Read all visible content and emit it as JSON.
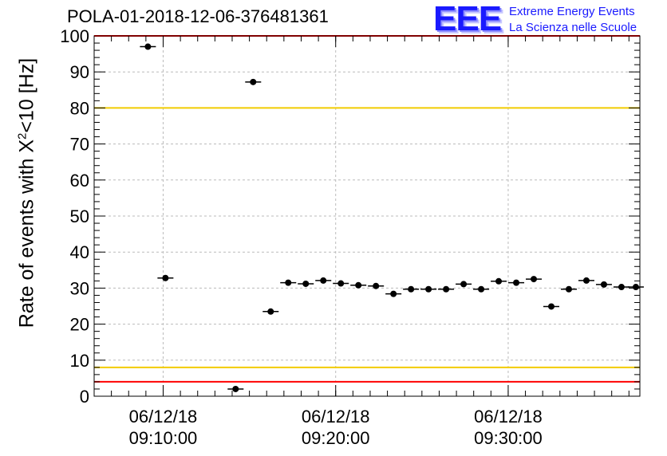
{
  "header": {
    "title": "POLA-01-2018-12-06-376481361",
    "logo_text": "EEE",
    "logo_line1": "Extreme Energy Events",
    "logo_line2": "La Scienza nelle Scuole"
  },
  "colors": {
    "limit_red": "#ff0000",
    "limit_yellow": "#f2cc00",
    "marker": "#000000",
    "grid": "#bbbbbb",
    "logo_blue": "#1a1aff"
  },
  "chart_data": {
    "type": "scatter",
    "title": "POLA-01-2018-12-06-376481361",
    "ylabel_prefix": "Rate of events with X",
    "ylabel_sup": "2",
    "ylabel_suffix": "<10 [Hz]",
    "xlabel": "",
    "ylim": [
      0,
      100
    ],
    "yticks": [
      0,
      10,
      20,
      30,
      40,
      50,
      60,
      70,
      80,
      90,
      100
    ],
    "xlim": [
      "09:06:00",
      "09:37:38"
    ],
    "xticks": [
      {
        "date": "06/12/18",
        "time": "09:10:00"
      },
      {
        "date": "06/12/18",
        "time": "09:20:00"
      },
      {
        "date": "06/12/18",
        "time": "09:30:00"
      }
    ],
    "grid": true,
    "reference_lines": [
      {
        "y": 100,
        "color": "red"
      },
      {
        "y": 80,
        "color": "yellow"
      },
      {
        "y": 8,
        "color": "yellow"
      },
      {
        "y": 4,
        "color": "red"
      }
    ],
    "series": [
      {
        "x": [
          "09:09:07",
          "09:10:08",
          "09:11:09",
          "09:12:10",
          "09:13:11",
          "09:14:12",
          "09:15:13",
          "09:16:14",
          "09:17:15",
          "09:18:16",
          "09:19:17",
          "09:20:18",
          "09:21:19",
          "09:22:20",
          "09:23:21",
          "09:24:22",
          "09:25:23",
          "09:26:24",
          "09:27:25",
          "09:28:26",
          "09:29:27",
          "09:30:28",
          "09:31:29",
          "09:32:30",
          "09:33:31",
          "09:34:32",
          "09:35:33",
          "09:36:34",
          "09:37:24"
        ],
        "y": [
          97,
          32.8,
          null,
          null,
          null,
          2,
          87.2,
          23.5,
          31.5,
          31.2,
          32.1,
          31.3,
          30.8,
          30.6,
          28.4,
          29.7,
          29.7,
          29.7,
          31.1,
          29.7,
          31.9,
          31.5,
          32.5,
          24.9,
          29.7,
          32.1,
          31.0,
          30.3,
          30.3
        ]
      }
    ]
  }
}
